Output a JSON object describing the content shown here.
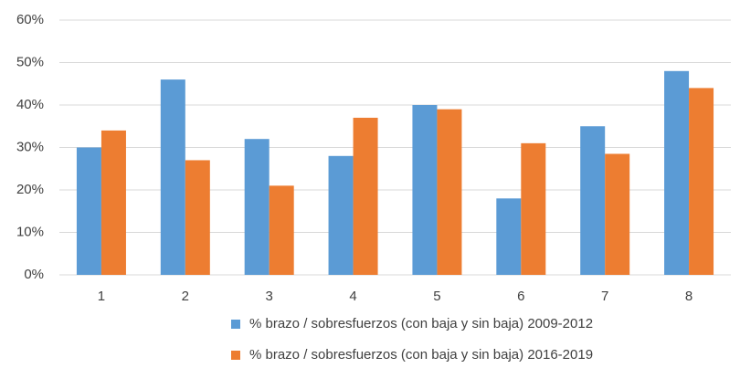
{
  "chart_data": {
    "type": "bar",
    "categories": [
      "1",
      "2",
      "3",
      "4",
      "5",
      "6",
      "7",
      "8"
    ],
    "series": [
      {
        "name": "% brazo / sobresfuerzos (con baja y sin baja) 2009-2012",
        "color": "#5b9bd5",
        "values": [
          30,
          46,
          32,
          28,
          40,
          18,
          35,
          48
        ]
      },
      {
        "name": "% brazo / sobresfuerzos (con baja y sin baja) 2016-2019",
        "color": "#ed7d31",
        "values": [
          34,
          27,
          21,
          37,
          39,
          31,
          28.5,
          44
        ]
      }
    ],
    "ylim": [
      0,
      60
    ],
    "yticks": [
      {
        "value": 0,
        "label": "0%"
      },
      {
        "value": 10,
        "label": "10%"
      },
      {
        "value": 20,
        "label": "20%"
      },
      {
        "value": 30,
        "label": "30%"
      },
      {
        "value": 40,
        "label": "40%"
      },
      {
        "value": 50,
        "label": "50%"
      },
      {
        "value": 60,
        "label": "60%"
      }
    ],
    "grid": true,
    "legend": "bottom"
  }
}
